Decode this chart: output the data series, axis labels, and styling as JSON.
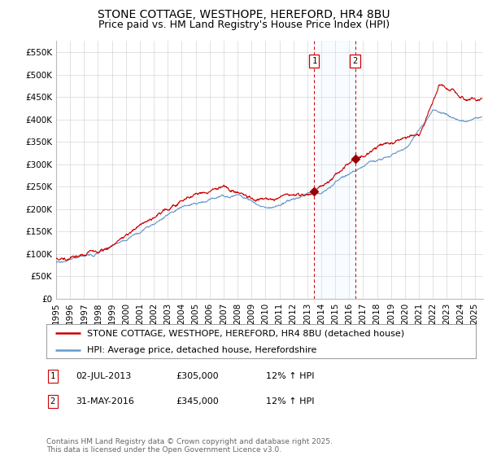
{
  "title": "STONE COTTAGE, WESTHOPE, HEREFORD, HR4 8BU",
  "subtitle": "Price paid vs. HM Land Registry's House Price Index (HPI)",
  "ylim": [
    0,
    575000
  ],
  "yticks": [
    0,
    50000,
    100000,
    150000,
    200000,
    250000,
    300000,
    350000,
    400000,
    450000,
    500000,
    550000
  ],
  "ytick_labels": [
    "£0",
    "£50K",
    "£100K",
    "£150K",
    "£200K",
    "£250K",
    "£300K",
    "£350K",
    "£400K",
    "£450K",
    "£500K",
    "£550K"
  ],
  "x_start_year": 1995,
  "x_end_year": 2025,
  "sale1_date": 2013.5,
  "sale1_label": "1",
  "sale1_price": 305000,
  "sale1_hpi_pct": "12%",
  "sale1_text": "02-JUL-2013",
  "sale2_date": 2016.42,
  "sale2_label": "2",
  "sale2_price": 345000,
  "sale2_hpi_pct": "12%",
  "sale2_text": "31-MAY-2016",
  "background_color": "#ffffff",
  "plot_bg_color": "#ffffff",
  "grid_color": "#cccccc",
  "hpi_line_color": "#6699cc",
  "price_line_color": "#cc0000",
  "shade_color": "#ddeeff",
  "marker_color": "#990000",
  "legend_label1": "STONE COTTAGE, WESTHOPE, HEREFORD, HR4 8BU (detached house)",
  "legend_label2": "HPI: Average price, detached house, Herefordshire",
  "footer_text": "Contains HM Land Registry data © Crown copyright and database right 2025.\nThis data is licensed under the Open Government Licence v3.0.",
  "title_fontsize": 10,
  "subtitle_fontsize": 9,
  "tick_fontsize": 7.5,
  "legend_fontsize": 8,
  "annot_fontsize": 8,
  "footer_fontsize": 6.5
}
